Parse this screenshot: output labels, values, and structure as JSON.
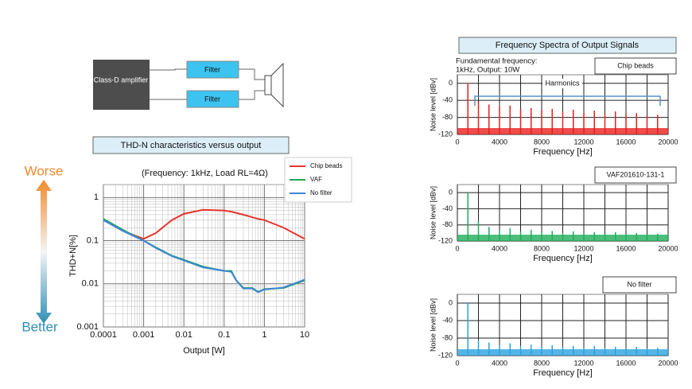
{
  "diagram": {
    "amplifier": "Class-D amplifier",
    "filters": [
      "Filter",
      "Filter"
    ]
  },
  "quality_scale": {
    "top": "Worse",
    "bottom": "Better"
  },
  "right_panel_title": "Frequency Spectra of Output Signals",
  "chart_data": [
    {
      "type": "line",
      "title": "THD-N characteristics versus output",
      "annotation": "(Frequency: 1kHz, Load RL=4Ω)",
      "x_label": "Output [W]",
      "y_label": "THD+N[%]",
      "xscale": "log",
      "yscale": "log",
      "grid": true,
      "xlim": [
        0.0001,
        10
      ],
      "ylim": [
        0.001,
        2
      ],
      "xticks": [
        0.0001,
        0.001,
        0.01,
        0.1,
        1,
        10
      ],
      "yticks": [
        0.001,
        0.01,
        0.1,
        1
      ],
      "x": [
        0.0001,
        0.0003,
        0.001,
        0.002,
        0.005,
        0.01,
        0.03,
        0.1,
        0.15,
        0.2,
        0.3,
        0.5,
        0.7,
        1,
        3,
        10
      ],
      "series": [
        {
          "name": "Chip beads",
          "color": "#e8342e",
          "values": [
            0.3,
            0.17,
            0.11,
            0.15,
            0.3,
            0.42,
            0.52,
            0.5,
            0.47,
            0.44,
            0.4,
            0.35,
            0.32,
            0.3,
            0.2,
            0.11
          ]
        },
        {
          "name": "VAF",
          "color": "#22a55a",
          "values": [
            0.32,
            0.18,
            0.1,
            0.07,
            0.045,
            0.036,
            0.025,
            0.02,
            0.02,
            0.012,
            0.008,
            0.008,
            0.0065,
            0.0075,
            0.008,
            0.012
          ]
        },
        {
          "name": "No filter",
          "color": "#3b86d4",
          "values": [
            0.3,
            0.17,
            0.1,
            0.068,
            0.044,
            0.035,
            0.024,
            0.02,
            0.019,
            0.012,
            0.0078,
            0.0078,
            0.0064,
            0.0074,
            0.0082,
            0.0125
          ]
        }
      ],
      "legend": "top-right"
    },
    {
      "type": "stem",
      "x_label": "Frequency [Hz]",
      "y_label": "Noise level [dBv]",
      "annotation": [
        "Fundamental frequency:",
        "1kHz, Output: 10W"
      ],
      "harmonics_label": "Harmonics",
      "xlim": [
        0,
        20000
      ],
      "ylim": [
        -120,
        20
      ],
      "xticks": [
        0,
        4000,
        8000,
        12000,
        16000,
        20000
      ],
      "yticks": [
        0,
        -40,
        -80,
        -120
      ],
      "grid": true,
      "x": [
        1000,
        2000,
        3000,
        4000,
        5000,
        6000,
        7000,
        8000,
        9000,
        10000,
        11000,
        12000,
        13000,
        14000,
        15000,
        16000,
        17000,
        18000,
        19000
      ],
      "series": [
        {
          "name": "Chip beads",
          "color": "#e8201e",
          "values": [
            0,
            -42,
            -50,
            -55,
            -52,
            -60,
            -58,
            -62,
            -60,
            -66,
            -62,
            -70,
            -64,
            -72,
            -66,
            -74,
            -70,
            -76,
            -74
          ]
        }
      ]
    },
    {
      "type": "stem",
      "x_label": "Frequency [Hz]",
      "y_label": "Noise level [dBv]",
      "xlim": [
        0,
        20000
      ],
      "ylim": [
        -120,
        20
      ],
      "xticks": [
        0,
        4000,
        8000,
        12000,
        16000,
        20000
      ],
      "yticks": [
        0,
        -40,
        -80,
        -120
      ],
      "grid": true,
      "x": [
        1000,
        2000,
        3000,
        4000,
        5000,
        6000,
        7000,
        8000,
        9000,
        10000,
        11000,
        12000,
        13000,
        14000,
        15000,
        16000,
        17000,
        18000,
        19000
      ],
      "series": [
        {
          "name": "VAF201610-131-1",
          "color": "#1fae5a",
          "values": [
            0,
            -70,
            -85,
            -95,
            -88,
            -96,
            -92,
            -98,
            -95,
            -100,
            -96,
            -100,
            -98,
            -102,
            -98,
            -104,
            -100,
            -104,
            -102
          ]
        }
      ]
    },
    {
      "type": "stem",
      "x_label": "Frequency [Hz]",
      "y_label": "Noise level [dBv]",
      "xlim": [
        0,
        20000
      ],
      "ylim": [
        -120,
        20
      ],
      "xticks": [
        0,
        4000,
        8000,
        12000,
        16000,
        20000
      ],
      "yticks": [
        0,
        -40,
        -80,
        -120
      ],
      "grid": true,
      "x": [
        1000,
        2000,
        3000,
        4000,
        5000,
        6000,
        7000,
        8000,
        9000,
        10000,
        11000,
        12000,
        13000,
        14000,
        15000,
        16000,
        17000,
        18000,
        19000
      ],
      "series": [
        {
          "name": "No filter",
          "color": "#2aa3e0",
          "values": [
            0,
            -85,
            -90,
            -96,
            -92,
            -98,
            -95,
            -100,
            -96,
            -100,
            -98,
            -102,
            -98,
            -102,
            -100,
            -104,
            -100,
            -104,
            -102
          ]
        }
      ]
    }
  ]
}
